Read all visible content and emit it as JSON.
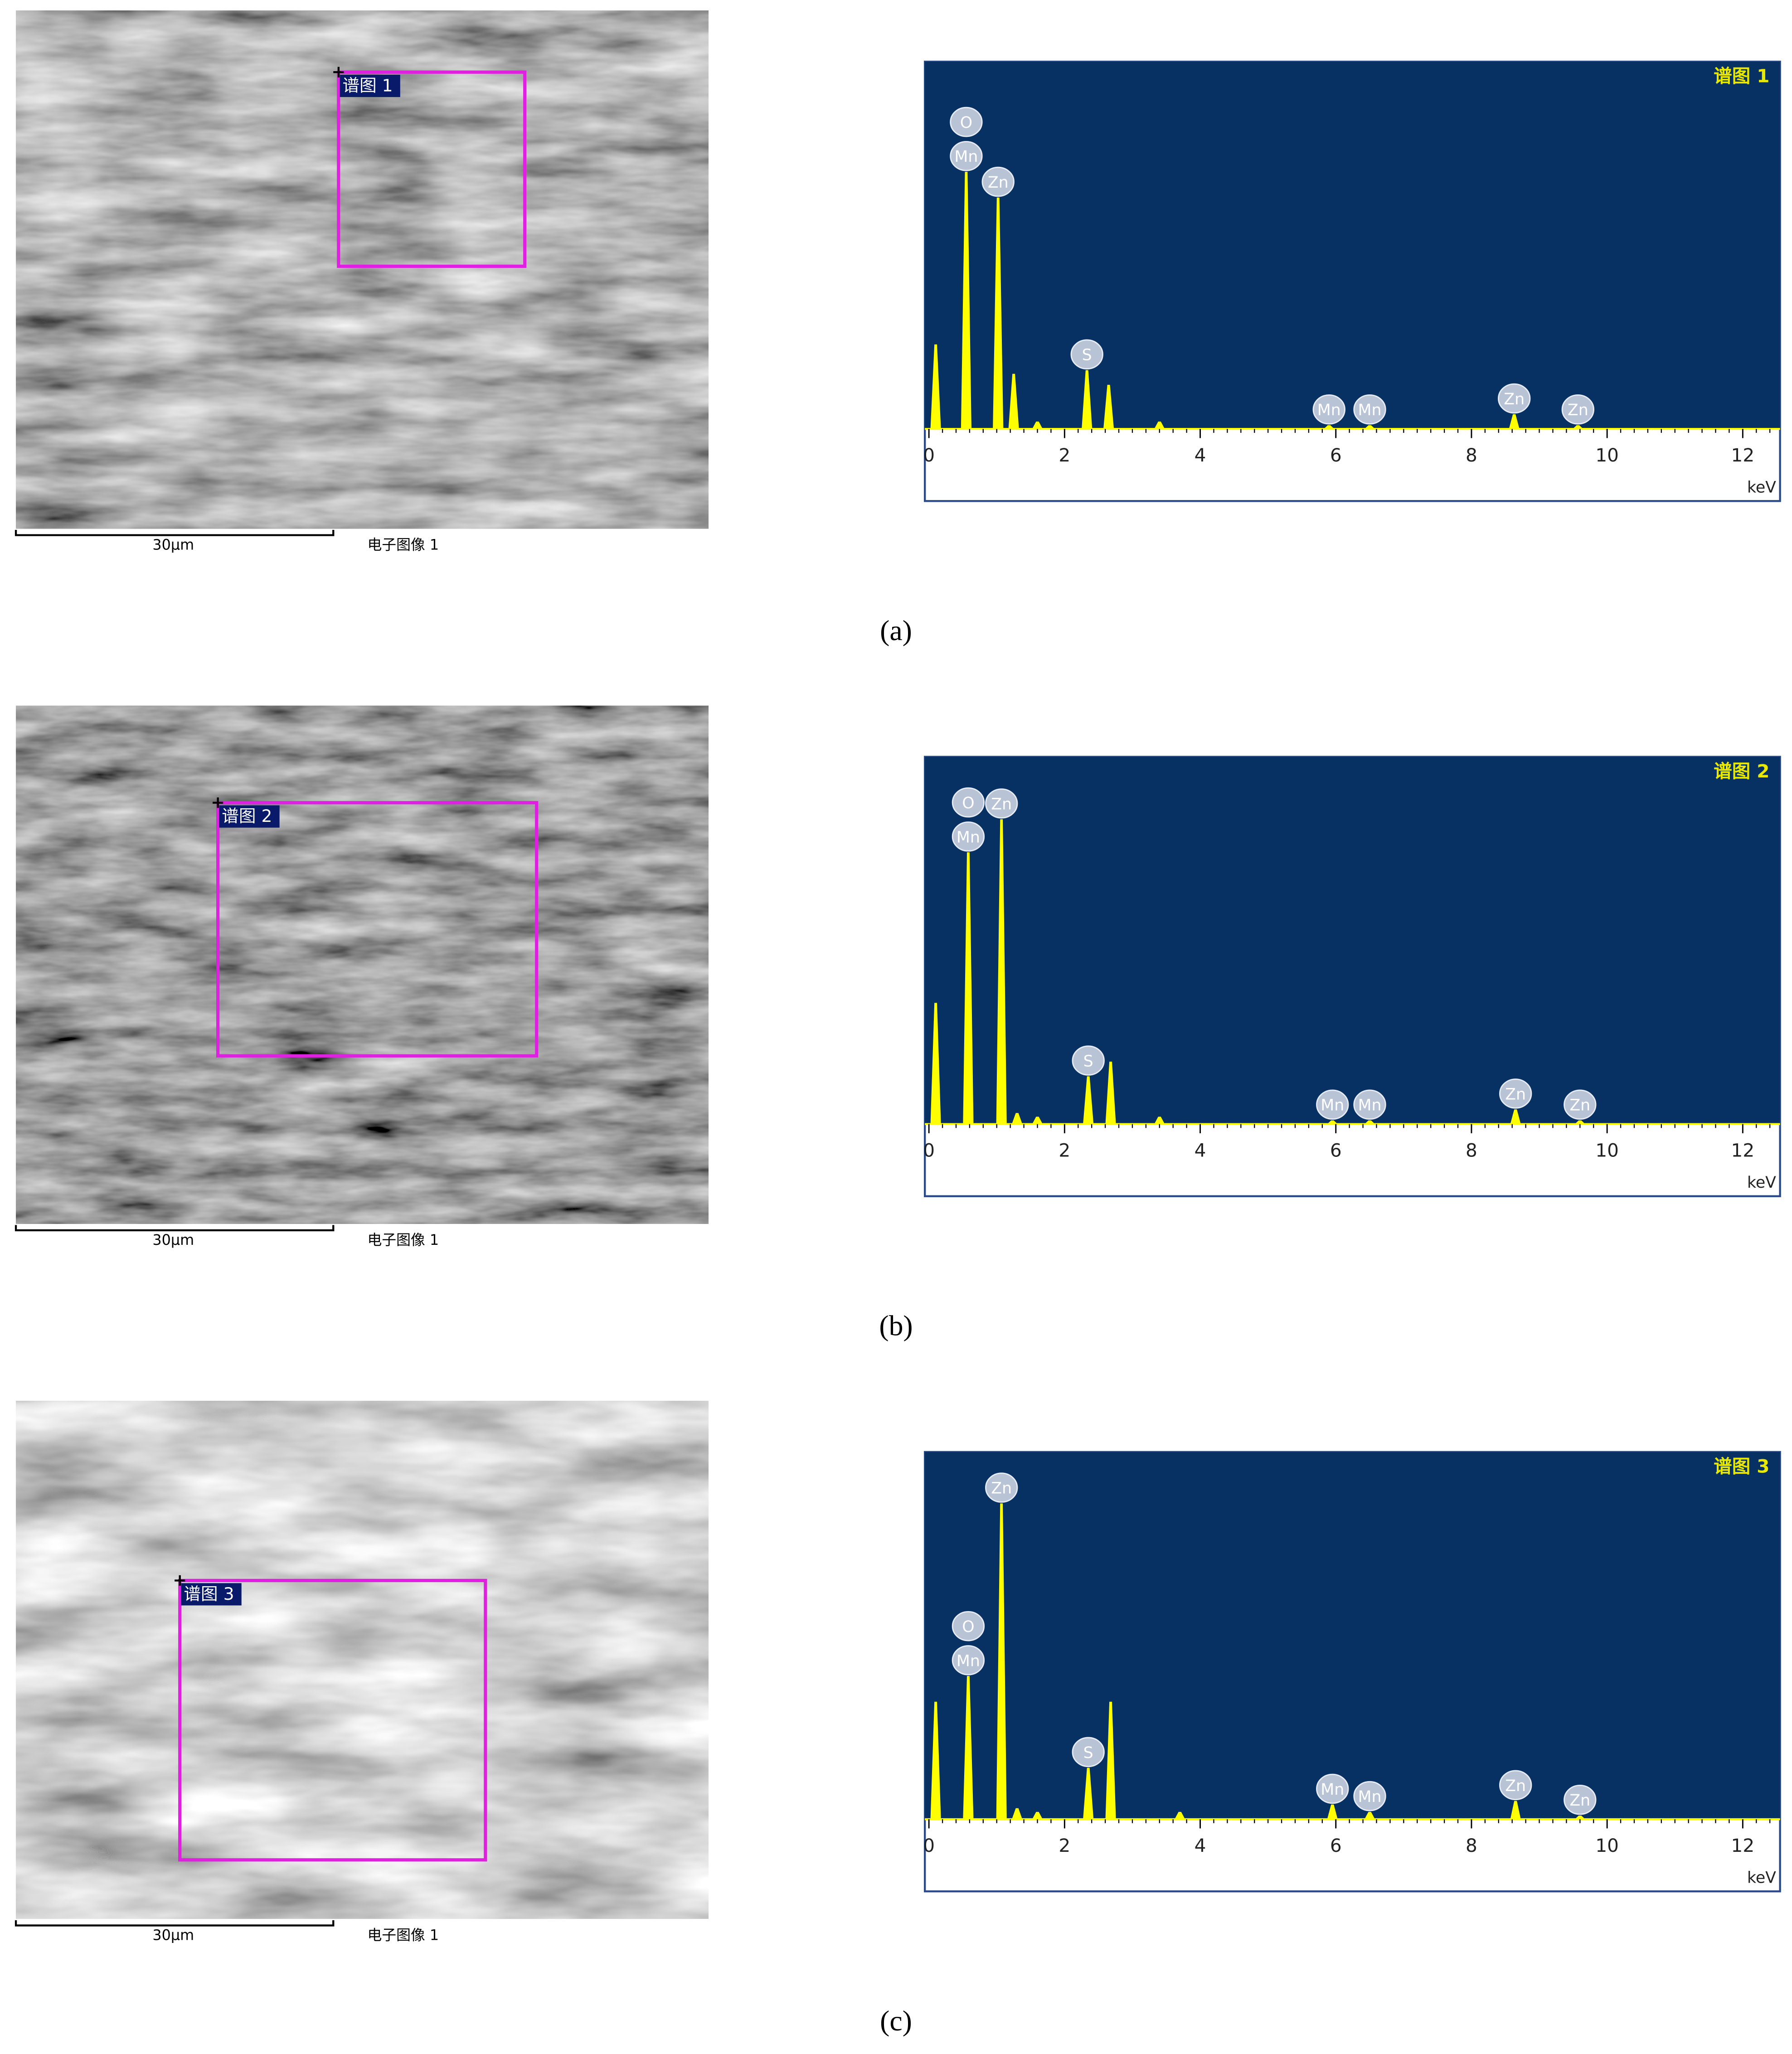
{
  "chart_data": [
    {
      "type": "spike",
      "title": "谱图 1",
      "xlabel": "keV",
      "xlim": [
        -0.06,
        12.55
      ],
      "xticks": [
        0,
        2,
        4,
        6,
        8,
        10,
        12
      ],
      "ylim": [
        0,
        100
      ],
      "color": "#ffff00",
      "background": "#073163",
      "x": [
        0.1,
        0.55,
        1.02,
        1.25,
        1.6,
        2.33,
        2.65,
        3.4,
        5.9,
        6.5,
        8.63,
        9.57
      ],
      "values": [
        23,
        70,
        63,
        15,
        2,
        16,
        12,
        2,
        1,
        1,
        4,
        1
      ],
      "annotations": [
        {
          "text": "Mn",
          "x": 0.55
        },
        {
          "text": "O",
          "x": 0.55
        },
        {
          "text": "Zn",
          "x": 1.02
        },
        {
          "text": "S",
          "x": 2.33
        },
        {
          "text": "Mn",
          "x": 5.9
        },
        {
          "text": "Mn",
          "x": 6.5
        },
        {
          "text": "Zn",
          "x": 8.63
        },
        {
          "text": "Zn",
          "x": 9.57
        }
      ]
    },
    {
      "type": "spike",
      "title": "谱图 2",
      "xlabel": "keV",
      "xlim": [
        -0.06,
        12.55
      ],
      "xticks": [
        0,
        2,
        4,
        6,
        8,
        10,
        12
      ],
      "ylim": [
        0,
        100
      ],
      "color": "#ffff00",
      "background": "#073163",
      "x": [
        0.1,
        0.58,
        1.07,
        1.3,
        1.6,
        2.35,
        2.68,
        3.4,
        5.95,
        6.5,
        8.65,
        9.6
      ],
      "values": [
        33,
        74,
        83,
        3,
        2,
        13,
        17,
        2,
        1,
        1,
        4,
        1
      ],
      "annotations": [
        {
          "text": "Mn",
          "x": 0.58
        },
        {
          "text": "O",
          "x": 0.58
        },
        {
          "text": "Zn",
          "x": 1.07
        },
        {
          "text": "S",
          "x": 2.35
        },
        {
          "text": "Mn",
          "x": 5.95
        },
        {
          "text": "Mn",
          "x": 6.5
        },
        {
          "text": "Zn",
          "x": 8.65
        },
        {
          "text": "Zn",
          "x": 9.6
        }
      ]
    },
    {
      "type": "spike",
      "title": "谱图 3",
      "xlabel": "keV",
      "xlim": [
        -0.06,
        12.55
      ],
      "xticks": [
        0,
        2,
        4,
        6,
        8,
        10,
        12
      ],
      "ylim": [
        0,
        100
      ],
      "color": "#ffff00",
      "background": "#073163",
      "x": [
        0.1,
        0.58,
        1.07,
        1.3,
        1.6,
        2.35,
        2.68,
        3.7,
        5.95,
        6.5,
        8.65,
        9.6
      ],
      "values": [
        32,
        39,
        86,
        3,
        2,
        14,
        32,
        2,
        4,
        2,
        5,
        1
      ],
      "annotations": [
        {
          "text": "Mn",
          "x": 0.58
        },
        {
          "text": "O",
          "x": 0.58
        },
        {
          "text": "Zn",
          "x": 1.07
        },
        {
          "text": "S",
          "x": 2.35
        },
        {
          "text": "Mn",
          "x": 5.95
        },
        {
          "text": "Mn",
          "x": 6.5
        },
        {
          "text": "Zn",
          "x": 8.65
        },
        {
          "text": "Zn",
          "x": 9.6
        }
      ]
    }
  ],
  "figure": {
    "panels": [
      {
        "caption": "(a)",
        "region_label": "谱图 1",
        "scale_label": "30μm",
        "image_label": "电子图像 1"
      },
      {
        "caption": "(b)",
        "region_label": "谱图 2",
        "scale_label": "30μm",
        "image_label": "电子图像 1"
      },
      {
        "caption": "(c)",
        "region_label": "谱图 3",
        "scale_label": "30μm",
        "image_label": "电子图像 1"
      }
    ]
  }
}
